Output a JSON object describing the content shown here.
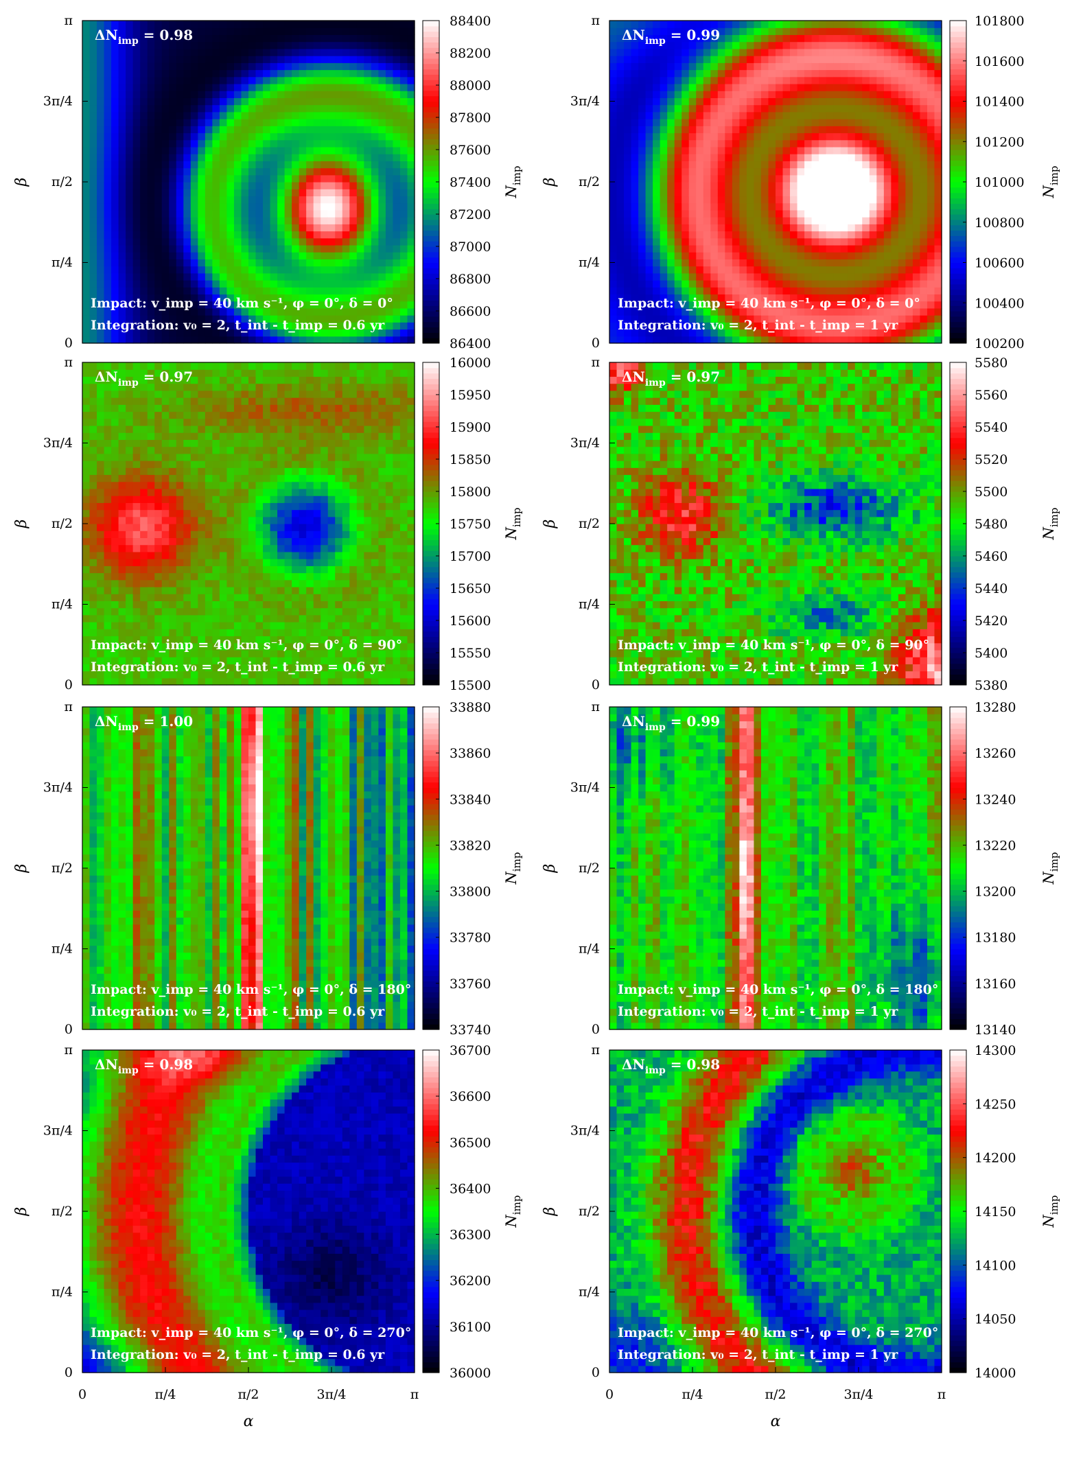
{
  "figure": {
    "xlabel": "α",
    "ylabel": "β",
    "colorbar_label": "N",
    "colorbar_label_sub": "imp",
    "axis_ticks": [
      "0",
      "π/4",
      "π/2",
      "3π/4",
      "π"
    ],
    "colormap": [
      "#000000",
      "#0000ff",
      "#00ff00",
      "#ff0000",
      "#ffffff"
    ]
  },
  "chart_data": [
    {
      "type": "heatmap",
      "panel": "row1-left",
      "delta_label": "ΔN",
      "delta_sub": "imp",
      "delta_value": "0.98",
      "impact_text": "Impact: v_imp = 40 km s⁻¹, φ = 0°, δ = 0°",
      "integration_text": "Integration: v₀ = 2, t_int - t_imp = 0.6 yr",
      "delta_deg": "0°",
      "time_yr": "0.6 yr",
      "pattern": "p0",
      "zlim": [
        86400,
        88400
      ],
      "colorbar_ticks": [
        "86400",
        "86600",
        "86800",
        "87000",
        "87200",
        "87400",
        "87600",
        "87800",
        "88000",
        "88200",
        "88400"
      ]
    },
    {
      "type": "heatmap",
      "panel": "row1-right",
      "delta_label": "ΔN",
      "delta_sub": "imp",
      "delta_value": "0.99",
      "impact_text": "Impact: v_imp = 40 km s⁻¹, φ = 0°, δ = 0°",
      "integration_text": "Integration: v₀ = 2, t_int - t_imp = 1 yr",
      "delta_deg": "0°",
      "time_yr": "1 yr",
      "pattern": "p1",
      "zlim": [
        100200,
        101800
      ],
      "colorbar_ticks": [
        "100200",
        "100400",
        "100600",
        "100800",
        "101000",
        "101200",
        "101400",
        "101600",
        "101800"
      ]
    },
    {
      "type": "heatmap",
      "panel": "row2-left",
      "delta_label": "ΔN",
      "delta_sub": "imp",
      "delta_value": "0.97",
      "impact_text": "Impact: v_imp = 40 km s⁻¹, φ = 0°, δ = 90°",
      "integration_text": "Integration: v₀ = 2, t_int - t_imp = 0.6 yr",
      "delta_deg": "90°",
      "time_yr": "0.6 yr",
      "pattern": "p2",
      "zlim": [
        15500,
        16000
      ],
      "colorbar_ticks": [
        "15500",
        "15550",
        "15600",
        "15650",
        "15700",
        "15750",
        "15800",
        "15850",
        "15900",
        "15950",
        "16000"
      ]
    },
    {
      "type": "heatmap",
      "panel": "row2-right",
      "delta_label": "ΔN",
      "delta_sub": "imp",
      "delta_value": "0.97",
      "impact_text": "Impact: v_imp = 40 km s⁻¹, φ = 0°, δ = 90°",
      "integration_text": "Integration: v₀ = 2, t_int - t_imp = 1 yr",
      "delta_deg": "90°",
      "time_yr": "1 yr",
      "pattern": "p3",
      "zlim": [
        5380,
        5580
      ],
      "colorbar_ticks": [
        "5380",
        "5400",
        "5420",
        "5440",
        "5460",
        "5480",
        "5500",
        "5520",
        "5540",
        "5560",
        "5580"
      ]
    },
    {
      "type": "heatmap",
      "panel": "row3-left",
      "delta_label": "ΔN",
      "delta_sub": "imp",
      "delta_value": "1.00",
      "impact_text": "Impact: v_imp = 40 km s⁻¹, φ = 0°, δ = 180°",
      "integration_text": "Integration: v₀ = 2, t_int - t_imp = 0.6 yr",
      "delta_deg": "180°",
      "time_yr": "0.6 yr",
      "pattern": "p4",
      "zlim": [
        33740,
        33880
      ],
      "colorbar_ticks": [
        "33740",
        "33760",
        "33780",
        "33800",
        "33820",
        "33840",
        "33860",
        "33880"
      ]
    },
    {
      "type": "heatmap",
      "panel": "row3-right",
      "delta_label": "ΔN",
      "delta_sub": "imp",
      "delta_value": "0.99",
      "impact_text": "Impact: v_imp = 40 km s⁻¹, φ = 0°, δ = 180°",
      "integration_text": "Integration: v₀ = 2, t_int - t_imp = 1 yr",
      "delta_deg": "180°",
      "time_yr": "1 yr",
      "pattern": "p5",
      "zlim": [
        13140,
        13280
      ],
      "colorbar_ticks": [
        "13140",
        "13160",
        "13180",
        "13200",
        "13220",
        "13240",
        "13260",
        "13280"
      ]
    },
    {
      "type": "heatmap",
      "panel": "row4-left",
      "delta_label": "ΔN",
      "delta_sub": "imp",
      "delta_value": "0.98",
      "impact_text": "Impact: v_imp = 40 km s⁻¹, φ = 0°, δ = 270°",
      "integration_text": "Integration: v₀ = 2, t_int - t_imp = 0.6 yr",
      "delta_deg": "270°",
      "time_yr": "0.6 yr",
      "pattern": "p6",
      "zlim": [
        36000,
        36700
      ],
      "colorbar_ticks": [
        "36000",
        "36100",
        "36200",
        "36300",
        "36400",
        "36500",
        "36600",
        "36700"
      ]
    },
    {
      "type": "heatmap",
      "panel": "row4-right",
      "delta_label": "ΔN",
      "delta_sub": "imp",
      "delta_value": "0.98",
      "impact_text": "Impact: v_imp = 40 km s⁻¹, φ = 0°, δ = 270°",
      "integration_text": "Integration: v₀ = 2, t_int - t_imp = 1 yr",
      "delta_deg": "270°",
      "time_yr": "1 yr",
      "pattern": "p7",
      "zlim": [
        14000,
        14300
      ],
      "colorbar_ticks": [
        "14000",
        "14050",
        "14100",
        "14150",
        "14200",
        "14250",
        "14300"
      ]
    }
  ]
}
